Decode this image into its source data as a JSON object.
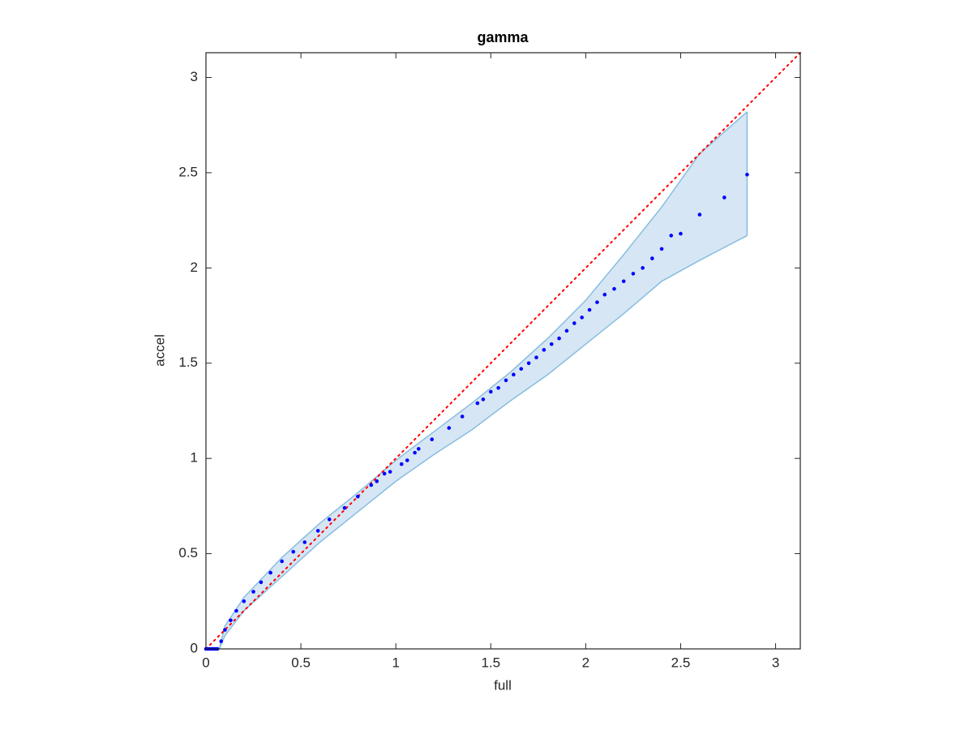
{
  "chart_data": {
    "type": "scatter",
    "title": "gamma",
    "x_label": "full",
    "y_label": "accel",
    "xlim": [
      0,
      3.13
    ],
    "ylim": [
      0,
      3.13
    ],
    "xticks": [
      0,
      0.5,
      1,
      1.5,
      2,
      2.5,
      3
    ],
    "yticks": [
      0,
      0.5,
      1,
      1.5,
      2,
      2.5,
      3
    ],
    "color": "#0000ff",
    "reference_color": "#ff0000",
    "x": [
      0,
      0.01,
      0.02,
      0.03,
      0.04,
      0.05,
      0.06,
      0.08,
      0.1,
      0.13,
      0.16,
      0.2,
      0.25,
      0.29,
      0.34,
      0.4,
      0.46,
      0.52,
      0.59,
      0.65,
      0.73,
      0.8,
      0.87,
      0.9,
      0.94,
      0.97,
      1.03,
      1.06,
      1.1,
      1.12,
      1.19,
      1.28,
      1.35,
      1.43,
      1.46,
      1.5,
      1.54,
      1.58,
      1.62,
      1.66,
      1.7,
      1.74,
      1.78,
      1.82,
      1.86,
      1.9,
      1.94,
      1.98,
      2.02,
      2.06,
      2.1,
      2.15,
      2.2,
      2.25,
      2.3,
      2.35,
      2.4,
      2.45,
      2.5,
      2.6,
      2.73,
      2.85
    ],
    "values": [
      0,
      0,
      0,
      0,
      0,
      0,
      0,
      0.04,
      0.1,
      0.15,
      0.2,
      0.25,
      0.3,
      0.35,
      0.4,
      0.46,
      0.51,
      0.56,
      0.62,
      0.68,
      0.74,
      0.8,
      0.86,
      0.88,
      0.92,
      0.93,
      0.97,
      0.99,
      1.03,
      1.05,
      1.1,
      1.16,
      1.22,
      1.29,
      1.31,
      1.35,
      1.37,
      1.41,
      1.44,
      1.47,
      1.5,
      1.53,
      1.57,
      1.6,
      1.63,
      1.67,
      1.71,
      1.74,
      1.78,
      1.82,
      1.86,
      1.89,
      1.93,
      1.97,
      2.0,
      2.05,
      2.1,
      2.17,
      2.18,
      2.28,
      2.37,
      2.49
    ],
    "band": {
      "color": "#d6e6f4",
      "edge_color": "#88bde0",
      "x": [
        0,
        0.07,
        0.1,
        0.2,
        0.4,
        0.6,
        0.8,
        1.0,
        1.2,
        1.4,
        1.6,
        1.8,
        2.0,
        2.2,
        2.4,
        2.6,
        2.85
      ],
      "upper": [
        0,
        0,
        0.12,
        0.27,
        0.48,
        0.66,
        0.82,
        0.99,
        1.14,
        1.29,
        1.45,
        1.63,
        1.83,
        2.07,
        2.32,
        2.6,
        2.82
      ],
      "lower": [
        0,
        0,
        0.07,
        0.2,
        0.38,
        0.56,
        0.72,
        0.88,
        1.02,
        1.15,
        1.3,
        1.44,
        1.6,
        1.76,
        1.93,
        2.04,
        2.17
      ]
    }
  }
}
